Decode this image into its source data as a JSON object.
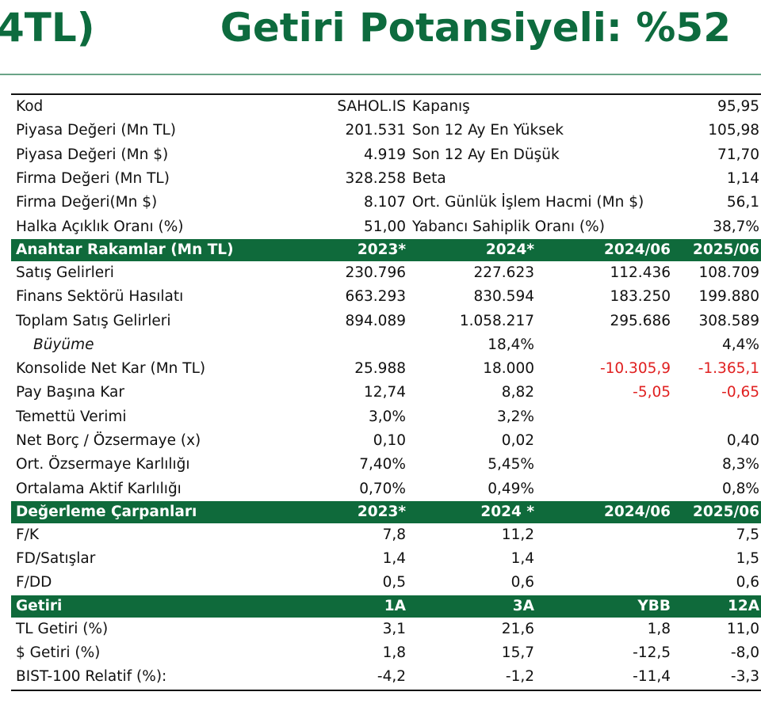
{
  "header": {
    "title_left": "4TL)",
    "title_right": "Getiri Potansiyeli: %52"
  },
  "info": [
    {
      "k1": "Kod",
      "v1": "SAHOL.IS",
      "k2": "Kapanış",
      "v2": "95,95"
    },
    {
      "k1": "Piyasa Değeri (Mn TL)",
      "v1": "201.531",
      "k2": "Son 12 Ay En Yüksek",
      "v2": "105,98"
    },
    {
      "k1": "Piyasa Değeri (Mn $)",
      "v1": "4.919",
      "k2": "Son 12 Ay En Düşük",
      "v2": "71,70"
    },
    {
      "k1": "Firma Değeri (Mn TL)",
      "v1": "328.258",
      "k2": "Beta",
      "v2": "1,14"
    },
    {
      "k1": "Firma Değeri(Mn $)",
      "v1": "8.107",
      "k2": "Ort. Günlük İşlem Hacmi (Mn $)",
      "v2": "56,1"
    },
    {
      "k1": "Halka Açıklık Oranı (%)",
      "v1": "51,00",
      "k2": "Yabancı Sahiplik Oranı (%)",
      "v2": "38,7%"
    }
  ],
  "key_figures": {
    "header": [
      "Anahtar Rakamlar (Mn TL)",
      "2023*",
      "2024*",
      "2024/06",
      "2025/06"
    ],
    "rows": [
      {
        "label": "Satış Gelirleri",
        "values": [
          "230.796",
          "227.623",
          "112.436",
          "108.709"
        ]
      },
      {
        "label": "Finans Sektörü Hasılatı",
        "values": [
          "663.293",
          "830.594",
          "183.250",
          "199.880"
        ]
      },
      {
        "label": "Toplam Satış Gelirleri",
        "values": [
          "894.089",
          "1.058.217",
          "295.686",
          "308.589"
        ]
      },
      {
        "label": "Büyüme",
        "italic": true,
        "values": [
          "",
          "18,4%",
          "",
          "4,4%"
        ]
      },
      {
        "label": "Konsolide Net Kar (Mn TL)",
        "values": [
          "25.988",
          "18.000",
          "-10.305,9",
          "-1.365,1"
        ],
        "neg": [
          false,
          false,
          true,
          true
        ]
      },
      {
        "label": "Pay Başına Kar",
        "values": [
          "12,74",
          "8,82",
          "-5,05",
          "-0,65"
        ],
        "neg": [
          false,
          false,
          true,
          true
        ]
      },
      {
        "label": "Temettü Verimi",
        "values": [
          "3,0%",
          "3,2%",
          "",
          ""
        ]
      },
      {
        "label": "Net Borç / Özsermaye (x)",
        "values": [
          "0,10",
          "0,02",
          "",
          "0,40"
        ]
      },
      {
        "label": "Ort. Özsermaye Karlılığı",
        "values": [
          "7,40%",
          "5,45%",
          "",
          "8,3%"
        ]
      },
      {
        "label": "Ortalama Aktif Karlılığı",
        "values": [
          "0,70%",
          "0,49%",
          "",
          "0,8%"
        ]
      }
    ]
  },
  "multiples": {
    "header": [
      "Değerleme Çarpanları",
      "2023*",
      "2024 *",
      "2024/06",
      "2025/06"
    ],
    "rows": [
      {
        "label": "F/K",
        "values": [
          "7,8",
          "11,2",
          "",
          "7,5"
        ]
      },
      {
        "label": "FD/Satışlar",
        "values": [
          "1,4",
          "1,4",
          "",
          "1,5"
        ]
      },
      {
        "label": "F/DD",
        "values": [
          "0,5",
          "0,6",
          "",
          "0,6"
        ]
      }
    ]
  },
  "returns": {
    "header": [
      "Getiri",
      "1A",
      "3A",
      "YBB",
      "12A"
    ],
    "rows": [
      {
        "label": "TL Getiri (%)",
        "values": [
          "3,1",
          "21,6",
          "1,8",
          "11,0"
        ]
      },
      {
        "label": "$ Getiri (%)",
        "values": [
          "1,8",
          "15,7",
          "-12,5",
          "-8,0"
        ]
      },
      {
        "label": "BIST-100 Relatif (%):",
        "values": [
          "-4,2",
          "-1,2",
          "-11,4",
          "-3,3"
        ]
      }
    ]
  },
  "colors": {
    "brand_green": "#0d6b3e",
    "section_green": "#0f6a3b",
    "negative_red": "#e02020"
  }
}
